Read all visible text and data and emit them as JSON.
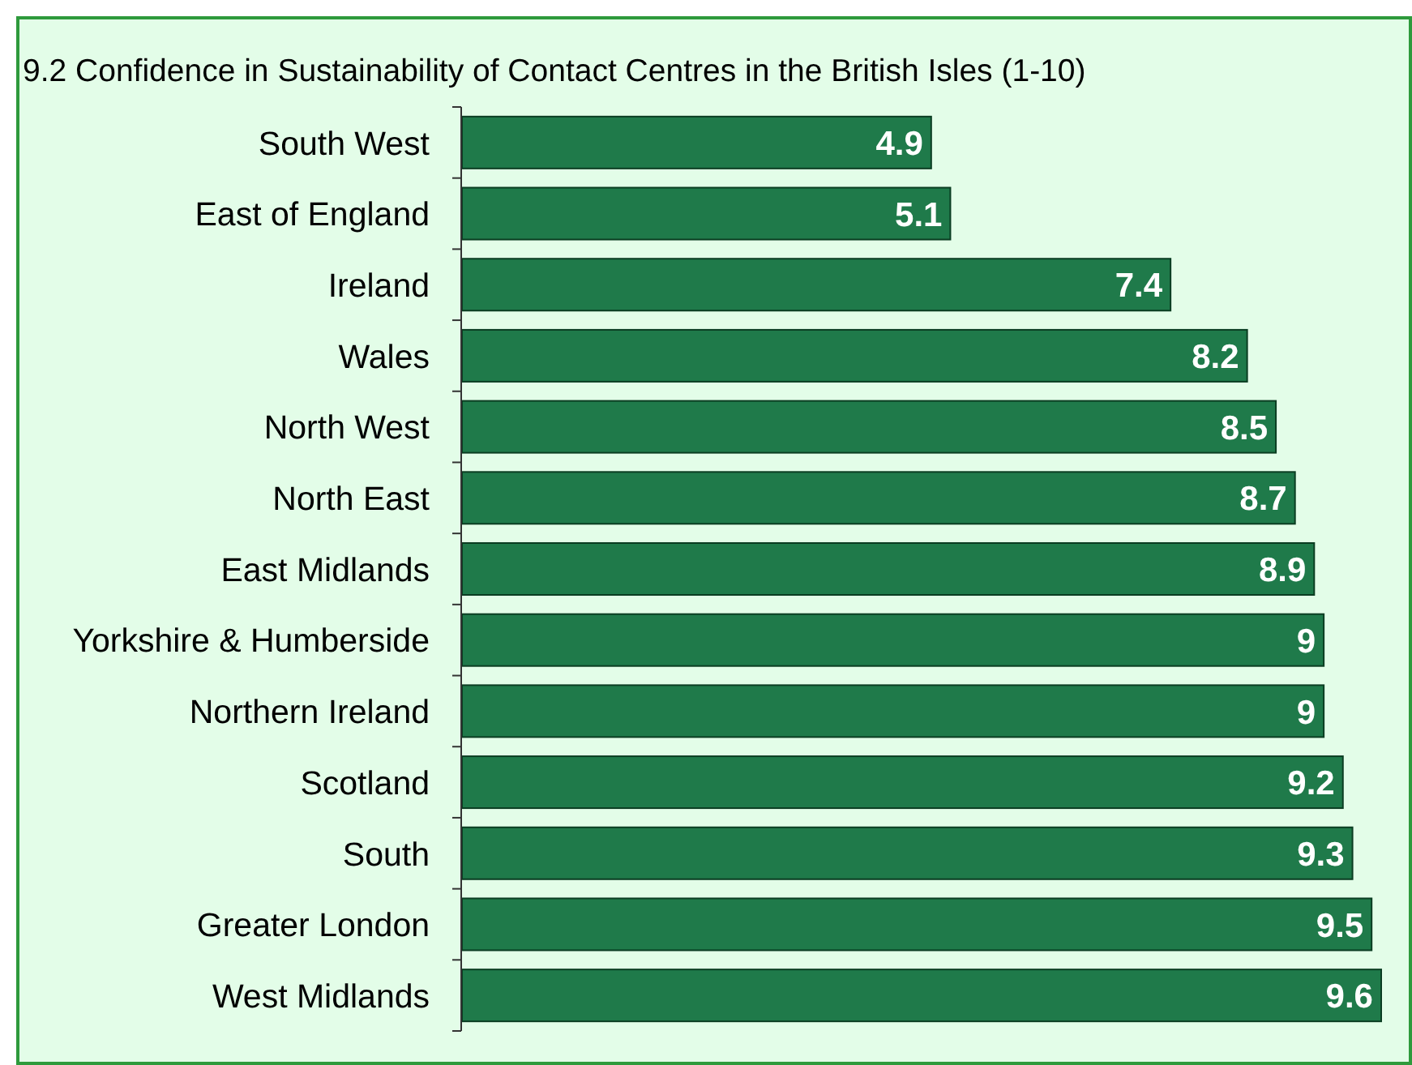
{
  "chart_data": {
    "type": "bar",
    "orientation": "horizontal",
    "title": "9.2 Confidence in Sustainability of Contact Centres in the British Isles (1-10)",
    "categories": [
      "South West",
      "East of England",
      "Ireland",
      "Wales",
      "North West",
      "North East",
      "East Midlands",
      "Yorkshire & Humberside",
      "Northern Ireland",
      "Scotland",
      "South",
      "Greater London",
      "West Midlands"
    ],
    "values": [
      4.9,
      5.1,
      7.4,
      8.2,
      8.5,
      8.7,
      8.9,
      9,
      9,
      9.2,
      9.3,
      9.5,
      9.6
    ],
    "color": "#1f7a4a",
    "data_labels": true
  }
}
